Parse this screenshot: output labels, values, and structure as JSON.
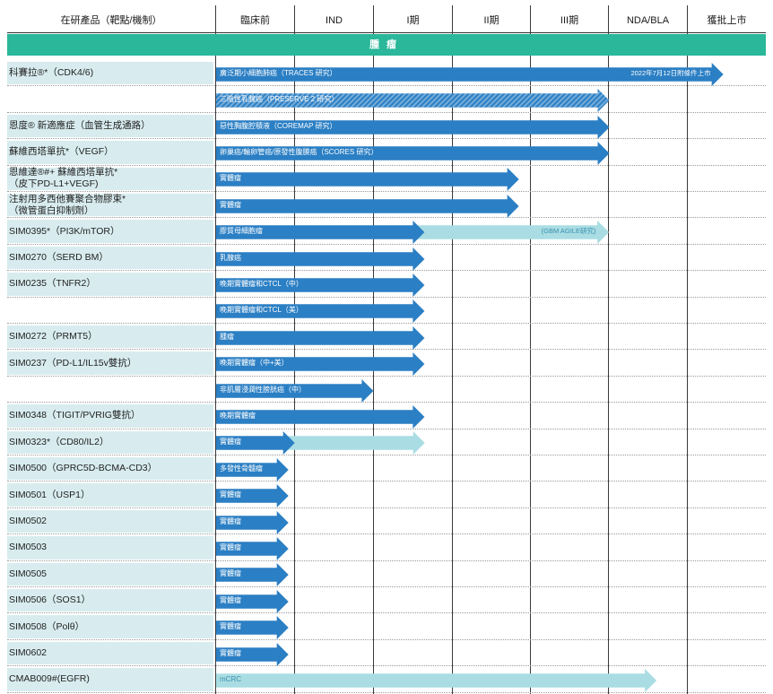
{
  "header": {
    "product": "在研產品（靶點/機制）",
    "preclinical": "臨床前",
    "ind": "IND",
    "phase1": "I期",
    "phase2": "II期",
    "phase3": "III期",
    "nda": "NDA/BLA",
    "approved": "獲批上市"
  },
  "banner": "腫瘤",
  "colors": {
    "banner": "#2ab79a",
    "arrow_dark": "#2b7fc4",
    "arrow_light": "#a9dde3",
    "label_bg": "#d8ecef"
  },
  "rows": [
    {
      "label": [
        "科賽拉®*（CDK4/6)"
      ],
      "indication": "廣泛期小細胞肺癌（TRACES 研究）",
      "stage": 6.45,
      "style": "dark",
      "note": "2022年7月12日附條件上市"
    },
    {
      "label": [],
      "indication": "三陰性乳腺癌（PRESERVE 2 研究）",
      "stage": 5.0,
      "style": "hatched"
    },
    {
      "label": [
        "恩度® 新適應症（血管生成通路）"
      ],
      "indication": "惡性胸腹腔積液（COREMAP 研究）",
      "stage": 5.0,
      "style": "dark"
    },
    {
      "label": [
        "蘇維西塔單抗*（VEGF）"
      ],
      "indication": "卵巢癌/輸卵管癌/原發性腹膜癌（SCORES 研究）",
      "stage": 5.0,
      "style": "dark"
    },
    {
      "label": [
        "恩維達®#+ 蘇維西塔單抗*",
        "（皮下PD-L1+VEGF)"
      ],
      "indication": "實體瘤",
      "stage": 3.85,
      "style": "dark"
    },
    {
      "label": [
        "注射用多西他賽聚合物膠束*",
        "（微管蛋白抑制劑）"
      ],
      "indication": "實體瘤",
      "stage": 3.85,
      "style": "dark"
    },
    {
      "label": [
        "SIM0395*（PI3K/mTOR）"
      ],
      "indication": "膠質母細胞瘤",
      "stage": 2.65,
      "style": "dark",
      "ext": 5.0,
      "ext_note": "(GBM AGILE研究)"
    },
    {
      "label": [
        "SIM0270（SERD BM）"
      ],
      "indication": "乳腺癌",
      "stage": 2.65,
      "style": "dark"
    },
    {
      "label": [
        "SIM0235（TNFR2）"
      ],
      "indication": "晚期實體瘤和CTCL（中）",
      "stage": 2.65,
      "style": "dark"
    },
    {
      "label": [],
      "indication": "晚期實體瘤和CTCL（美）",
      "stage": 2.65,
      "style": "dark"
    },
    {
      "label": [
        "SIM0272（PRMT5）"
      ],
      "indication": "腫瘤",
      "stage": 2.65,
      "style": "dark"
    },
    {
      "label": [
        "SIM0237（PD-L1/IL15v雙抗）"
      ],
      "indication": "晚期實體瘤（中+美）",
      "stage": 2.65,
      "style": "dark"
    },
    {
      "label": [],
      "indication": "非肌層浸潤性膀胱癌（中）",
      "stage": 2.0,
      "style": "dark"
    },
    {
      "label": [
        "SIM0348（TIGIT/PVRIG雙抗）"
      ],
      "indication": "晚期實體瘤",
      "stage": 2.65,
      "style": "dark"
    },
    {
      "label": [
        "SIM0323*（CD80/IL2）"
      ],
      "indication": "實體瘤",
      "stage": 1.0,
      "style": "dark",
      "ext": 2.65,
      "ext_note": ""
    },
    {
      "label": [
        "SIM0500（GPRC5D-BCMA-CD3）"
      ],
      "indication": "多發性骨髓瘤",
      "stage": 0.92,
      "style": "dark"
    },
    {
      "label": [
        "SIM0501（USP1）"
      ],
      "indication": "實體瘤",
      "stage": 0.92,
      "style": "dark"
    },
    {
      "label": [
        "SIM0502"
      ],
      "indication": "實體瘤",
      "stage": 0.92,
      "style": "dark"
    },
    {
      "label": [
        "SIM0503"
      ],
      "indication": "實體瘤",
      "stage": 0.92,
      "style": "dark"
    },
    {
      "label": [
        "SIM0505"
      ],
      "indication": "實體瘤",
      "stage": 0.92,
      "style": "dark"
    },
    {
      "label": [
        "SIM0506（SOS1）"
      ],
      "indication": "實體瘤",
      "stage": 0.92,
      "style": "dark"
    },
    {
      "label": [
        "SIM0508（Polθ）"
      ],
      "indication": "實體瘤",
      "stage": 0.92,
      "style": "dark"
    },
    {
      "label": [
        "SIM0602"
      ],
      "indication": "實體瘤",
      "stage": 0.92,
      "style": "dark"
    },
    {
      "label": [
        "CMAB009#(EGFR)"
      ],
      "indication": "mCRC",
      "stage": 5.6,
      "style": "light"
    }
  ]
}
